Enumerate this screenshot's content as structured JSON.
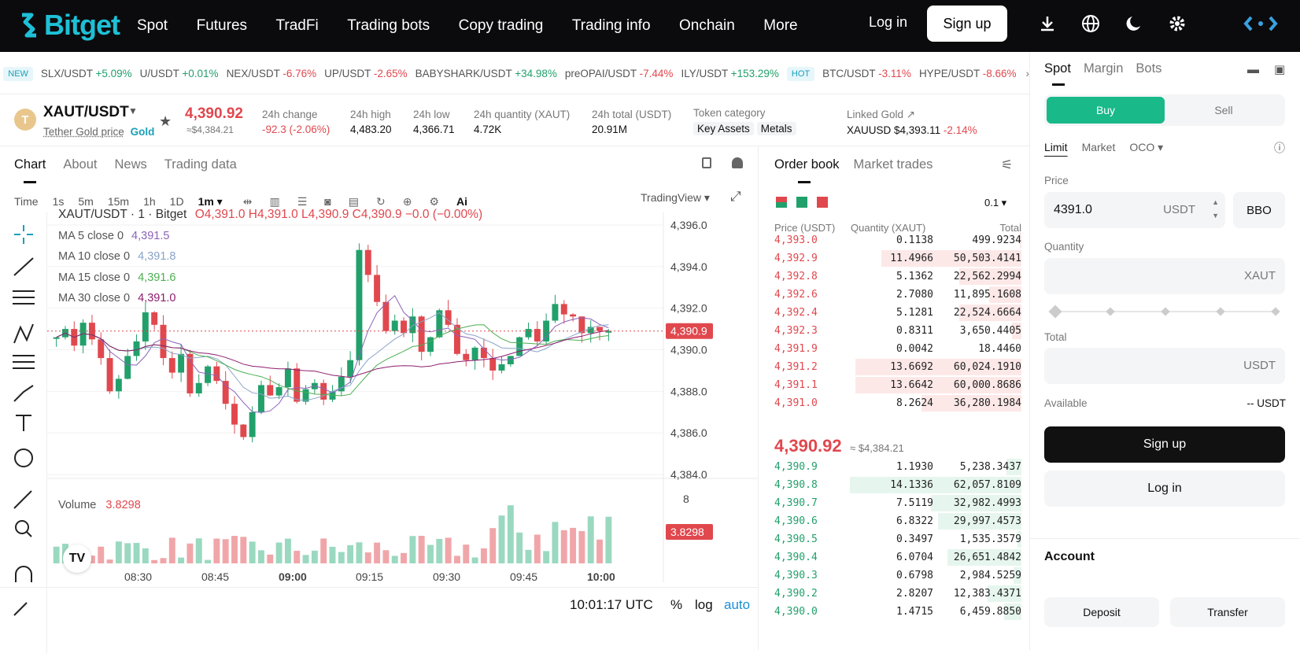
{
  "nav": {
    "logo": "Bitget",
    "items": [
      "Spot",
      "Futures",
      "TradFi",
      "Trading bots",
      "Copy trading",
      "Trading info",
      "Onchain",
      "More"
    ],
    "login": "Log in",
    "signup": "Sign up"
  },
  "ticker": {
    "new_tag": "NEW",
    "hot_tag": "HOT",
    "items": [
      {
        "pair": "SLX/USDT",
        "chg": "+5.09%",
        "dir": "up"
      },
      {
        "pair": "U/USDT",
        "chg": "+0.01%",
        "dir": "up"
      },
      {
        "pair": "NEX/USDT",
        "chg": "-6.76%",
        "dir": "dn"
      },
      {
        "pair": "UP/USDT",
        "chg": "-2.65%",
        "dir": "dn"
      },
      {
        "pair": "BABYSHARK/USDT",
        "chg": "+34.98%",
        "dir": "up"
      },
      {
        "pair": "preOPAI/USDT",
        "chg": "-7.44%",
        "dir": "dn"
      },
      {
        "pair": "ILY/USDT",
        "chg": "+153.29%",
        "dir": "up"
      }
    ],
    "hot_items": [
      {
        "pair": "BTC/USDT",
        "chg": "-3.11%",
        "dir": "dn"
      },
      {
        "pair": "HYPE/USDT",
        "chg": "-8.66%",
        "dir": "dn"
      }
    ]
  },
  "info": {
    "pair": "XAUT/USDT",
    "subtitle": "Tether Gold price",
    "gold": "Gold",
    "price": "4,390.92",
    "usd": "≈$4,384.21",
    "stats": [
      {
        "l": "24h change",
        "v": "-92.3 (-2.06%)"
      },
      {
        "l": "24h high",
        "v": "4,483.20"
      },
      {
        "l": "24h low",
        "v": "4,366.71"
      },
      {
        "l": "24h quantity (XAUT)",
        "v": "4.72K"
      },
      {
        "l": "24h total (USDT)",
        "v": "20.91M"
      }
    ],
    "token_category": "Token category",
    "cat1": "Key Assets",
    "cat2": "Metals",
    "linked": "Linked Gold ↗",
    "linked_pair": "XAUUSD",
    "linked_price": "$4,393.11",
    "linked_chg": "-2.14%"
  },
  "chart": {
    "tabs": [
      "Chart",
      "About",
      "News",
      "Trading data"
    ],
    "times": [
      "Time",
      "1s",
      "5m",
      "15m",
      "1h",
      "1D",
      "1m ▾"
    ],
    "tv": "TradingView ▾",
    "legend": {
      "title": "XAUT/USDT · 1 · Bitget",
      "o": "4,391.0",
      "h": "4,391.0",
      "l": "4,390.9",
      "c": "4,390.9",
      "chg": "−0.0 (−0.00%)"
    },
    "ma": [
      {
        "l": "MA 5 close 0",
        "v": "4,391.5",
        "c": "#8a63b8"
      },
      {
        "l": "MA 10 close 0",
        "v": "4,391.8",
        "c": "#8aa4c8"
      },
      {
        "l": "MA 15 close 0",
        "v": "4,391.6",
        "c": "#4caf50"
      },
      {
        "l": "MA 30 close 0",
        "v": "4,391.0",
        "c": "#8e1c6e"
      }
    ],
    "yticks": [
      "4,396.0",
      "4,394.0",
      "4,392.0",
      "4,390.0",
      "4,388.0",
      "4,386.0",
      "4,384.0"
    ],
    "cur_price": "4,390.9",
    "volume_label": "Volume",
    "volume_value": "3.8298",
    "vol_tick": "8",
    "xticks": [
      "08:30",
      "08:45",
      "09:00",
      "09:15",
      "09:30",
      "09:45",
      "10:00"
    ],
    "clock": "10:01:17 UTC",
    "pct": "%",
    "log": "log",
    "auto": "auto"
  },
  "orderbook": {
    "tabs": [
      "Order book",
      "Market trades"
    ],
    "depth": "0.1 ▾",
    "headers": [
      "Price (USDT)",
      "Quantity (XAUT)",
      "Total"
    ],
    "asks": [
      {
        "p": "4,393.0",
        "q": "0.1138",
        "t": "499.9234",
        "w": 0.01
      },
      {
        "p": "4,392.9",
        "q": "11.4966",
        "t": "50,503.4141",
        "w": 0.74
      },
      {
        "p": "4,392.8",
        "q": "5.1362",
        "t": "22,562.2994",
        "w": 0.33
      },
      {
        "p": "4,392.6",
        "q": "2.7080",
        "t": "11,895.1608",
        "w": 0.17
      },
      {
        "p": "4,392.4",
        "q": "5.1281",
        "t": "22,524.6664",
        "w": 0.33
      },
      {
        "p": "4,392.3",
        "q": "0.8311",
        "t": "3,650.4405",
        "w": 0.05
      },
      {
        "p": "4,391.9",
        "q": "0.0042",
        "t": "18.4460",
        "w": 0.0
      },
      {
        "p": "4,391.2",
        "q": "13.6692",
        "t": "60,024.1910",
        "w": 0.88
      },
      {
        "p": "4,391.1",
        "q": "13.6642",
        "t": "60,000.8686",
        "w": 0.88
      },
      {
        "p": "4,391.0",
        "q": "8.2624",
        "t": "36,280.1984",
        "w": 0.53
      }
    ],
    "mid": "4,390.92",
    "mid_usd": "≈ $4,384.21",
    "bids": [
      {
        "p": "4,390.9",
        "q": "1.1930",
        "t": "5,238.3437",
        "w": 0.08
      },
      {
        "p": "4,390.8",
        "q": "14.1336",
        "t": "62,057.8109",
        "w": 0.91
      },
      {
        "p": "4,390.7",
        "q": "7.5119",
        "t": "32,982.4993",
        "w": 0.48
      },
      {
        "p": "4,390.6",
        "q": "6.8322",
        "t": "29,997.4573",
        "w": 0.44
      },
      {
        "p": "4,390.5",
        "q": "0.3497",
        "t": "1,535.3579",
        "w": 0.02
      },
      {
        "p": "4,390.4",
        "q": "6.0704",
        "t": "26,651.4842",
        "w": 0.39
      },
      {
        "p": "4,390.3",
        "q": "0.6798",
        "t": "2,984.5259",
        "w": 0.04
      },
      {
        "p": "4,390.2",
        "q": "2.8207",
        "t": "12,383.4371",
        "w": 0.18
      },
      {
        "p": "4,390.0",
        "q": "1.4715",
        "t": "6,459.8850",
        "w": 0.09
      }
    ]
  },
  "trade": {
    "tabs": [
      "Spot",
      "Margin",
      "Bots"
    ],
    "buy": "Buy",
    "sell": "Sell",
    "types": [
      "Limit",
      "Market",
      "OCO ▾"
    ],
    "price_label": "Price",
    "price_value": "4391.0",
    "usdt": "USDT",
    "bbo": "BBO",
    "qty_label": "Quantity",
    "xaut": "XAUT",
    "total_label": "Total",
    "available": "Available",
    "available_val": "-- USDT",
    "signup": "Sign up",
    "login": "Log in",
    "account": "Account",
    "deposit": "Deposit",
    "transfer": "Transfer"
  },
  "colors": {
    "up": "#22a06b",
    "down": "#e0484e",
    "accent": "#1ec0d6",
    "buy": "#19b98a"
  }
}
